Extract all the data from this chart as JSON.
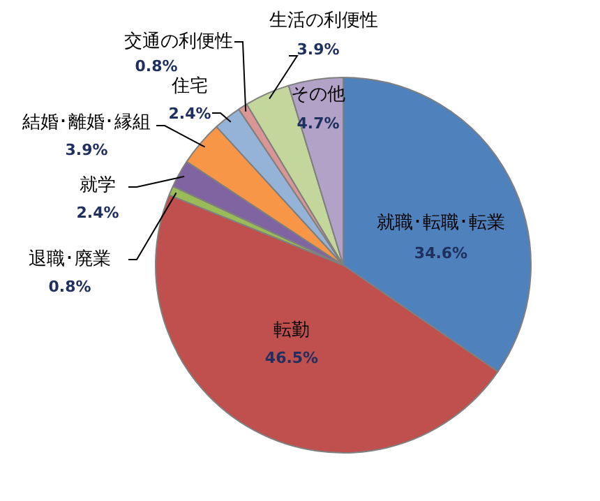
{
  "chart_data": {
    "type": "pie",
    "categories": [
      "就職･転職･転業",
      "転勤",
      "退職･廃業",
      "就学",
      "結婚･離婚･縁組",
      "住宅",
      "交通の利便性",
      "生活の利便性",
      "その他"
    ],
    "values": [
      34.6,
      46.5,
      0.8,
      2.4,
      3.9,
      2.4,
      0.8,
      3.9,
      4.7
    ],
    "value_labels": [
      "34.6%",
      "46.5%",
      "0.8%",
      "2.4%",
      "3.9%",
      "2.4%",
      "0.8%",
      "3.9%",
      "4.7%"
    ],
    "colors": [
      "#4f81bd",
      "#c0504d",
      "#9bbb59",
      "#8064a2",
      "#f79646",
      "#95b3d7",
      "#d99694",
      "#c3d69b",
      "#b3a2c7"
    ],
    "legend": false
  }
}
